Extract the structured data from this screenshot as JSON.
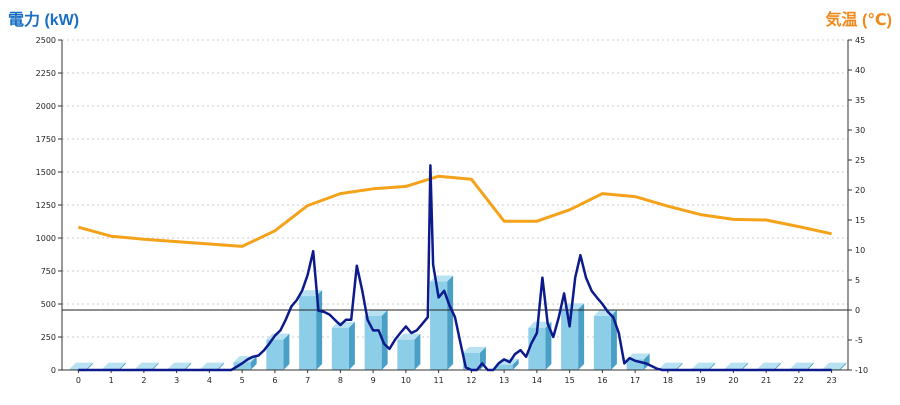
{
  "chart_data": {
    "type": "bar",
    "left_axis_label": "電力 (kW)",
    "right_axis_label": "気温 (℃)",
    "colors": {
      "bar_front": "#8ccde8",
      "bar_side": "#4a9fc6",
      "bar_top": "#b8e2f2",
      "power_line": "#0d1a8c",
      "temperature_line": "#f5a21b",
      "left_label": "#1a6fc4",
      "right_label": "#f08a1c",
      "grid": "#bbbbbb"
    },
    "y_left": {
      "min": 0,
      "max": 2500,
      "ticks": [
        "0",
        "250",
        "500",
        "750",
        "1000",
        "1250",
        "1500",
        "1750",
        "2000",
        "2250",
        "2500"
      ]
    },
    "y_right": {
      "min": -10,
      "max": 45,
      "ticks": [
        "-10",
        "-5",
        "0",
        "5",
        "10",
        "15",
        "20",
        "25",
        "30",
        "35",
        "40",
        "45"
      ]
    },
    "categories": [
      "0",
      "1",
      "2",
      "3",
      "4",
      "5",
      "6",
      "7",
      "8",
      "9",
      "10",
      "11",
      "12",
      "13",
      "14",
      "15",
      "16",
      "17",
      "18",
      "19",
      "20",
      "21",
      "22",
      "23"
    ],
    "hourly_power_bars": [
      10,
      10,
      10,
      10,
      10,
      60,
      230,
      560,
      320,
      410,
      230,
      670,
      130,
      40,
      320,
      460,
      410,
      80,
      10,
      10,
      10,
      10,
      10,
      10
    ],
    "temperature_line": [
      13.8,
      12.3,
      11.8,
      11.4,
      11.0,
      10.6,
      13.2,
      17.4,
      19.4,
      20.2,
      20.6,
      22.3,
      21.8,
      14.8,
      14.8,
      16.7,
      19.4,
      18.9,
      17.3,
      15.9,
      15.1,
      15.0,
      13.9,
      12.7
    ],
    "power_line": {
      "x": [
        0,
        0.5,
        1,
        1.5,
        2,
        2.5,
        3,
        3.5,
        4,
        4.33,
        4.67,
        5,
        5.17,
        5.33,
        5.5,
        5.67,
        5.83,
        6,
        6.17,
        6.33,
        6.5,
        6.67,
        6.83,
        7,
        7.17,
        7.33,
        7.5,
        7.67,
        7.83,
        8,
        8.17,
        8.33,
        8.5,
        8.67,
        8.83,
        9,
        9.17,
        9.33,
        9.5,
        9.67,
        9.83,
        10,
        10.17,
        10.33,
        10.5,
        10.67,
        10.75,
        10.83,
        11,
        11.17,
        11.33,
        11.5,
        11.67,
        11.83,
        12,
        12.17,
        12.33,
        12.5,
        12.67,
        12.83,
        13,
        13.17,
        13.33,
        13.5,
        13.67,
        13.83,
        14,
        14.17,
        14.33,
        14.5,
        14.67,
        14.83,
        15,
        15.17,
        15.33,
        15.5,
        15.67,
        15.83,
        16,
        16.17,
        16.33,
        16.5,
        16.67,
        16.83,
        17,
        17.17,
        17.33,
        17.5,
        17.67,
        17.83,
        18,
        18.5,
        19,
        19.5,
        20,
        20.5,
        21,
        21.5,
        22,
        22.5,
        23
      ],
      "y": [
        0,
        0,
        0,
        0,
        0,
        0,
        0,
        0,
        0,
        0,
        0,
        50,
        80,
        100,
        110,
        150,
        200,
        260,
        300,
        380,
        480,
        530,
        600,
        720,
        900,
        450,
        440,
        420,
        380,
        340,
        380,
        380,
        790,
        600,
        380,
        300,
        300,
        200,
        160,
        230,
        280,
        330,
        280,
        300,
        350,
        400,
        1550,
        800,
        550,
        600,
        490,
        400,
        200,
        20,
        0,
        0,
        50,
        0,
        0,
        50,
        80,
        60,
        120,
        150,
        100,
        200,
        280,
        700,
        350,
        250,
        400,
        580,
        330,
        700,
        870,
        700,
        600,
        550,
        500,
        440,
        400,
        280,
        50,
        90,
        70,
        60,
        50,
        30,
        10,
        0,
        0,
        0,
        0,
        0,
        0,
        0,
        0,
        0,
        0,
        0,
        0
      ]
    },
    "reference_line_right_axis": 0,
    "grid": true
  }
}
